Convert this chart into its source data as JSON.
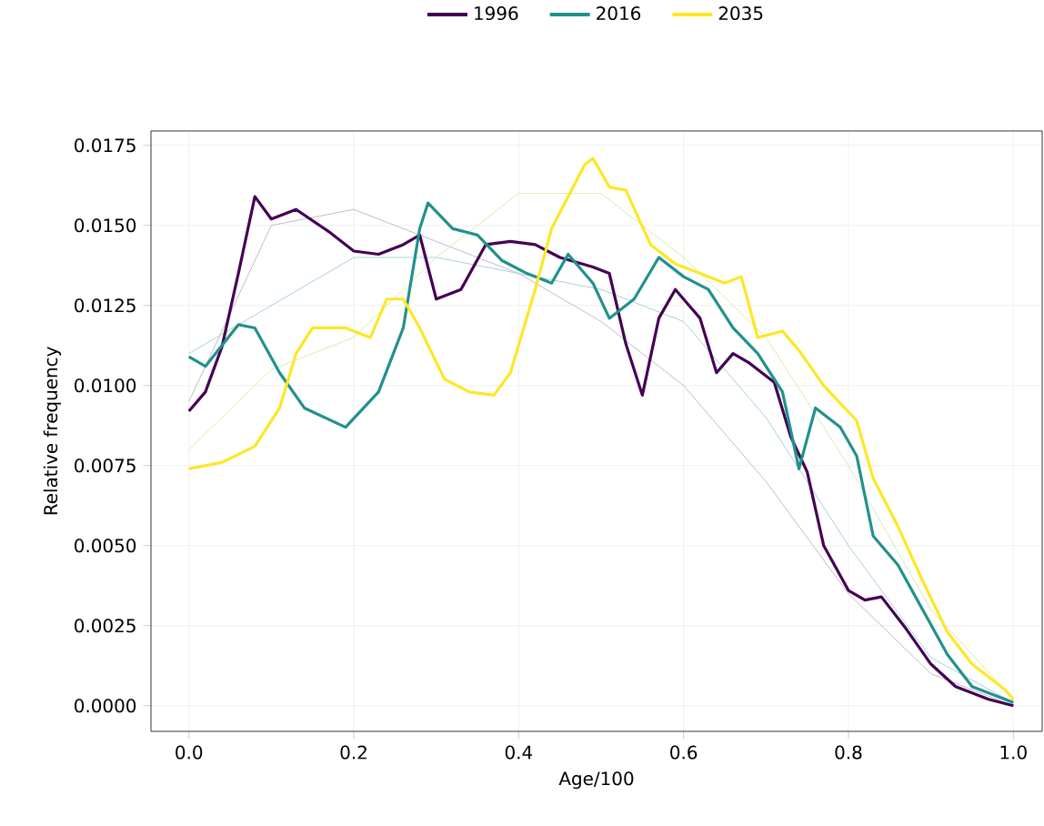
{
  "chart_data": {
    "type": "line",
    "xlabel": "Age/100",
    "ylabel": "Relative frequency",
    "xlim": [
      -0.046,
      1.035
    ],
    "ylim": [
      -0.0008,
      0.01795
    ],
    "xticks": [
      {
        "value": 0,
        "label": "0.0"
      },
      {
        "value": 0.2,
        "label": "0.2"
      },
      {
        "value": 0.4,
        "label": "0.4"
      },
      {
        "value": 0.6,
        "label": "0.6"
      },
      {
        "value": 0.8,
        "label": "0.8"
      },
      {
        "value": 1.0,
        "label": "1.0"
      }
    ],
    "yticks": [
      {
        "value": 0,
        "label": "0.0000"
      },
      {
        "value": 0.0025,
        "label": "0.0025"
      },
      {
        "value": 0.005,
        "label": "0.0050"
      },
      {
        "value": 0.0075,
        "label": "0.0075"
      },
      {
        "value": 0.01,
        "label": "0.0100"
      },
      {
        "value": 0.0125,
        "label": "0.0125"
      },
      {
        "value": 0.015,
        "label": "0.0150"
      },
      {
        "value": 0.0175,
        "label": "0.0175"
      }
    ],
    "grid": true,
    "legend": "top",
    "line_style": "solid",
    "marker": "none",
    "series": [
      {
        "color": "#c7b8d0",
        "x": [
          0,
          0.1,
          0.2,
          0.3,
          0.4,
          0.5,
          0.6,
          0.7,
          0.8,
          0.9,
          1.0
        ],
        "values": [
          0.0095,
          0.015,
          0.0155,
          0.0145,
          0.0135,
          0.012,
          0.01,
          0.007,
          0.0035,
          0.001,
          0
        ]
      },
      {
        "color": "#a8d2d0",
        "x": [
          0,
          0.1,
          0.2,
          0.3,
          0.4,
          0.5,
          0.6,
          0.7,
          0.8,
          0.9,
          1.0
        ],
        "values": [
          0.011,
          0.0125,
          0.014,
          0.014,
          0.0135,
          0.013,
          0.012,
          0.009,
          0.005,
          0.0015,
          0.0001
        ]
      },
      {
        "color": "#d6ecb0",
        "x": [
          0,
          0.1,
          0.2,
          0.3,
          0.4,
          0.5,
          0.6,
          0.7,
          0.8,
          0.9,
          1.0
        ],
        "values": [
          0.008,
          0.0105,
          0.0115,
          0.014,
          0.016,
          0.016,
          0.014,
          0.0115,
          0.0075,
          0.003,
          0.0002
        ]
      },
      {
        "name": "1996",
        "color": "#440154",
        "x": [
          0,
          0.02,
          0.04,
          0.06,
          0.08,
          0.1,
          0.13,
          0.17,
          0.2,
          0.23,
          0.26,
          0.28,
          0.3,
          0.33,
          0.36,
          0.39,
          0.42,
          0.45,
          0.49,
          0.51,
          0.53,
          0.55,
          0.57,
          0.59,
          0.62,
          0.64,
          0.66,
          0.68,
          0.71,
          0.73,
          0.75,
          0.77,
          0.8,
          0.82,
          0.84,
          0.87,
          0.9,
          0.93,
          0.97,
          1.0
        ],
        "values": [
          0.0092,
          0.0098,
          0.0112,
          0.0135,
          0.0159,
          0.0152,
          0.0155,
          0.0148,
          0.0142,
          0.0141,
          0.0144,
          0.0147,
          0.0127,
          0.013,
          0.0144,
          0.0145,
          0.0144,
          0.014,
          0.0137,
          0.0135,
          0.0113,
          0.0097,
          0.0121,
          0.013,
          0.0121,
          0.0104,
          0.011,
          0.0107,
          0.0101,
          0.0084,
          0.0073,
          0.005,
          0.0036,
          0.0033,
          0.0034,
          0.0024,
          0.0013,
          0.0006,
          0.0002,
          0
        ]
      },
      {
        "name": "2016",
        "color": "#21918c",
        "x": [
          0,
          0.02,
          0.06,
          0.08,
          0.11,
          0.14,
          0.19,
          0.23,
          0.26,
          0.28,
          0.29,
          0.32,
          0.35,
          0.38,
          0.41,
          0.44,
          0.46,
          0.49,
          0.51,
          0.54,
          0.57,
          0.6,
          0.63,
          0.66,
          0.69,
          0.72,
          0.74,
          0.76,
          0.79,
          0.81,
          0.83,
          0.86,
          0.89,
          0.92,
          0.95,
          0.99,
          1.0
        ],
        "values": [
          0.0109,
          0.0106,
          0.0119,
          0.0118,
          0.0104,
          0.0093,
          0.0087,
          0.0098,
          0.0118,
          0.0149,
          0.0157,
          0.0149,
          0.0147,
          0.0139,
          0.0135,
          0.0132,
          0.0141,
          0.0132,
          0.0121,
          0.0127,
          0.014,
          0.0134,
          0.013,
          0.0118,
          0.011,
          0.0098,
          0.0074,
          0.0093,
          0.0087,
          0.0078,
          0.0053,
          0.0044,
          0.003,
          0.0016,
          0.0006,
          0.0002,
          0.0001
        ]
      },
      {
        "name": "2035",
        "color": "#fde725",
        "x": [
          0,
          0.04,
          0.08,
          0.11,
          0.13,
          0.15,
          0.19,
          0.22,
          0.24,
          0.26,
          0.28,
          0.31,
          0.34,
          0.37,
          0.39,
          0.42,
          0.44,
          0.48,
          0.49,
          0.51,
          0.53,
          0.56,
          0.59,
          0.62,
          0.65,
          0.67,
          0.69,
          0.72,
          0.74,
          0.77,
          0.81,
          0.83,
          0.86,
          0.89,
          0.92,
          0.95,
          0.99,
          1.0
        ],
        "values": [
          0.0074,
          0.0076,
          0.0081,
          0.0093,
          0.011,
          0.0118,
          0.0118,
          0.0115,
          0.0127,
          0.0127,
          0.0118,
          0.0102,
          0.0098,
          0.0097,
          0.0104,
          0.013,
          0.0149,
          0.0169,
          0.0171,
          0.0162,
          0.0161,
          0.0144,
          0.0138,
          0.0135,
          0.0132,
          0.0134,
          0.0115,
          0.0117,
          0.0111,
          0.01,
          0.0089,
          0.0071,
          0.0056,
          0.0039,
          0.0023,
          0.0013,
          0.0005,
          0.0002
        ]
      }
    ]
  }
}
